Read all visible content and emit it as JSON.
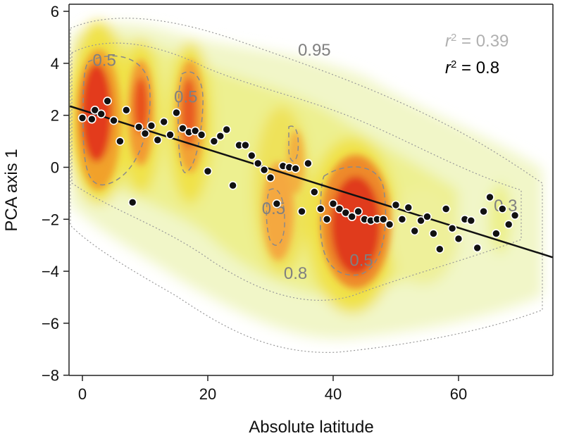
{
  "chart_data": {
    "type": "scatter",
    "xlabel": "Absolute latitude",
    "ylabel": "PCA axis 1",
    "xlim": [
      -2,
      75
    ],
    "ylim": [
      -8,
      6.2
    ],
    "x_ticks": [
      0,
      20,
      40,
      60
    ],
    "y_ticks": [
      -8,
      -6,
      -4,
      -2,
      0,
      2,
      4,
      6
    ],
    "x_tick_labels": [
      "0",
      "20",
      "40",
      "60"
    ],
    "y_tick_labels": [
      "−8",
      "−6",
      "−4",
      "−2",
      "0",
      "2",
      "4",
      "6"
    ],
    "grid": false,
    "density_background": true,
    "regression_line": {
      "intercept": 2.2,
      "slope": -0.0755
    },
    "contour_labels": [
      {
        "text": "0.95",
        "x": 37,
        "y": 4.3
      },
      {
        "text": "0.5",
        "x": 3.5,
        "y": 3.9
      },
      {
        "text": "0.5",
        "x": 16.5,
        "y": 2.5
      },
      {
        "text": "0.5",
        "x": 30.5,
        "y": -1.8
      },
      {
        "text": "0.5",
        "x": 44.5,
        "y": -3.8
      },
      {
        "text": "0.8",
        "x": 34,
        "y": -4.3
      },
      {
        "text": "0.3",
        "x": 67.5,
        "y": -1.7
      }
    ],
    "annotations": [
      {
        "prefix": "r",
        "sup": "2",
        "suffix": " = 0.39",
        "color": "#b0b0b0"
      },
      {
        "prefix": "r",
        "sup": "2",
        "suffix": " = 0.8",
        "color": "#000000"
      }
    ],
    "points": [
      [
        0,
        1.9
      ],
      [
        1.5,
        1.85
      ],
      [
        2,
        2.2
      ],
      [
        3,
        2.05
      ],
      [
        4,
        2.55
      ],
      [
        5,
        1.8
      ],
      [
        6,
        1.0
      ],
      [
        7,
        2.2
      ],
      [
        8,
        -1.35
      ],
      [
        9,
        1.55
      ],
      [
        10,
        1.3
      ],
      [
        11,
        1.6
      ],
      [
        12,
        1.05
      ],
      [
        13,
        1.75
      ],
      [
        14,
        1.25
      ],
      [
        15,
        2.1
      ],
      [
        16,
        1.5
      ],
      [
        17,
        1.35
      ],
      [
        18,
        1.4
      ],
      [
        19,
        1.25
      ],
      [
        20,
        -0.15
      ],
      [
        21,
        1.0
      ],
      [
        22,
        1.2
      ],
      [
        23,
        1.45
      ],
      [
        24,
        -0.7
      ],
      [
        25,
        0.85
      ],
      [
        26,
        0.85
      ],
      [
        27,
        0.45
      ],
      [
        28,
        0.15
      ],
      [
        29,
        -0.1
      ],
      [
        30,
        -0.4
      ],
      [
        31,
        -1.4
      ],
      [
        32,
        0.05
      ],
      [
        33,
        0.0
      ],
      [
        34,
        -0.05
      ],
      [
        35,
        -1.7
      ],
      [
        36,
        0.15
      ],
      [
        37,
        -0.95
      ],
      [
        38,
        -1.6
      ],
      [
        39,
        -2.0
      ],
      [
        40,
        -1.4
      ],
      [
        41,
        -1.6
      ],
      [
        42,
        -1.75
      ],
      [
        43,
        -1.9
      ],
      [
        44,
        -1.7
      ],
      [
        45,
        -2.0
      ],
      [
        46,
        -2.05
      ],
      [
        47,
        -2.0
      ],
      [
        48,
        -2.0
      ],
      [
        49,
        -2.2
      ],
      [
        50,
        -1.45
      ],
      [
        51,
        -2.0
      ],
      [
        52,
        -1.55
      ],
      [
        53,
        -2.45
      ],
      [
        54,
        -2.05
      ],
      [
        55,
        -1.9
      ],
      [
        56,
        -2.55
      ],
      [
        57,
        -3.15
      ],
      [
        58,
        -1.6
      ],
      [
        59,
        -2.35
      ],
      [
        60,
        -2.75
      ],
      [
        61,
        -2.0
      ],
      [
        62,
        -2.05
      ],
      [
        63,
        -3.1
      ],
      [
        64,
        -1.7
      ],
      [
        65,
        -1.15
      ],
      [
        66,
        -2.55
      ],
      [
        67,
        -1.6
      ],
      [
        68,
        -2.2
      ],
      [
        69,
        -1.85
      ]
    ]
  }
}
